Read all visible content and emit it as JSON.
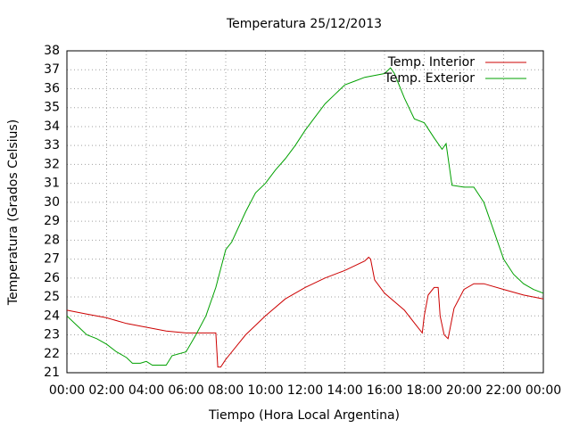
{
  "chart_data": {
    "type": "line",
    "title": "Temperatura 25/12/2013",
    "x_label": "Tiempo (Hora Local Argentina)",
    "y_label": "Temperatura (Grados Celsius)",
    "xlim": [
      0,
      24
    ],
    "xticks": [
      {
        "value": 0,
        "label": "00:00"
      },
      {
        "value": 2,
        "label": "02:00"
      },
      {
        "value": 4,
        "label": "04:00"
      },
      {
        "value": 6,
        "label": "06:00"
      },
      {
        "value": 8,
        "label": "08:00"
      },
      {
        "value": 10,
        "label": "10:00"
      },
      {
        "value": 12,
        "label": "12:00"
      },
      {
        "value": 14,
        "label": "14:00"
      },
      {
        "value": 16,
        "label": "16:00"
      },
      {
        "value": 18,
        "label": "18:00"
      },
      {
        "value": 20,
        "label": "20:00"
      },
      {
        "value": 22,
        "label": "22:00"
      },
      {
        "value": 24,
        "label": "00:00"
      }
    ],
    "ylim": [
      21,
      38
    ],
    "yticks": [
      21,
      22,
      23,
      24,
      25,
      26,
      27,
      28,
      29,
      30,
      31,
      32,
      33,
      34,
      35,
      36,
      37,
      38
    ],
    "grid": true,
    "legend": "top-right",
    "series": [
      {
        "name": "Temp. Interior",
        "color": "#cc0000",
        "x": [
          0,
          1,
          2,
          3,
          4,
          5,
          6,
          7,
          7.5,
          7.6,
          7.75,
          8,
          9,
          10,
          11,
          12,
          13,
          14,
          15,
          15.2,
          15.3,
          15.5,
          16,
          17,
          17.6,
          17.9,
          18,
          18.2,
          18.5,
          18.7,
          18.8,
          19,
          19.2,
          19.5,
          20,
          20.5,
          21,
          22,
          23,
          24
        ],
        "values": [
          24.3,
          24.1,
          23.9,
          23.6,
          23.4,
          23.2,
          23.1,
          23.1,
          23.1,
          21.3,
          21.3,
          21.7,
          23.0,
          24.0,
          24.9,
          25.5,
          26.0,
          26.4,
          26.9,
          27.1,
          27.0,
          25.9,
          25.2,
          24.3,
          23.5,
          23.1,
          24.0,
          25.1,
          25.5,
          25.5,
          24.0,
          23.0,
          22.8,
          24.4,
          25.4,
          25.7,
          25.7,
          25.4,
          25.1,
          24.9
        ]
      },
      {
        "name": "Temp. Exterior",
        "color": "#00a000",
        "x": [
          0,
          0.5,
          1,
          1.5,
          2,
          2.5,
          3,
          3.3,
          3.7,
          4,
          4.3,
          5,
          5.3,
          6,
          6.5,
          7,
          7.5,
          8,
          8.3,
          9,
          9.5,
          10,
          10.5,
          11,
          11.5,
          12,
          12.5,
          13,
          13.5,
          14,
          14.5,
          15,
          15.5,
          16,
          16.3,
          16.5,
          17,
          17.5,
          18,
          18.5,
          18.9,
          19.1,
          19.4,
          20,
          20.5,
          21,
          21.5,
          22,
          22.5,
          23,
          23.5,
          24
        ],
        "values": [
          24.0,
          23.5,
          23.0,
          22.8,
          22.5,
          22.1,
          21.8,
          21.5,
          21.5,
          21.6,
          21.4,
          21.4,
          21.9,
          22.1,
          23.0,
          24.0,
          25.5,
          27.5,
          27.9,
          29.5,
          30.5,
          31.0,
          31.7,
          32.3,
          33.0,
          33.8,
          34.5,
          35.2,
          35.7,
          36.2,
          36.4,
          36.6,
          36.7,
          36.8,
          37.1,
          36.8,
          35.5,
          34.4,
          34.2,
          33.4,
          32.8,
          33.1,
          30.9,
          30.8,
          30.8,
          30.0,
          28.5,
          27.0,
          26.2,
          25.7,
          25.4,
          25.2
        ]
      }
    ]
  }
}
